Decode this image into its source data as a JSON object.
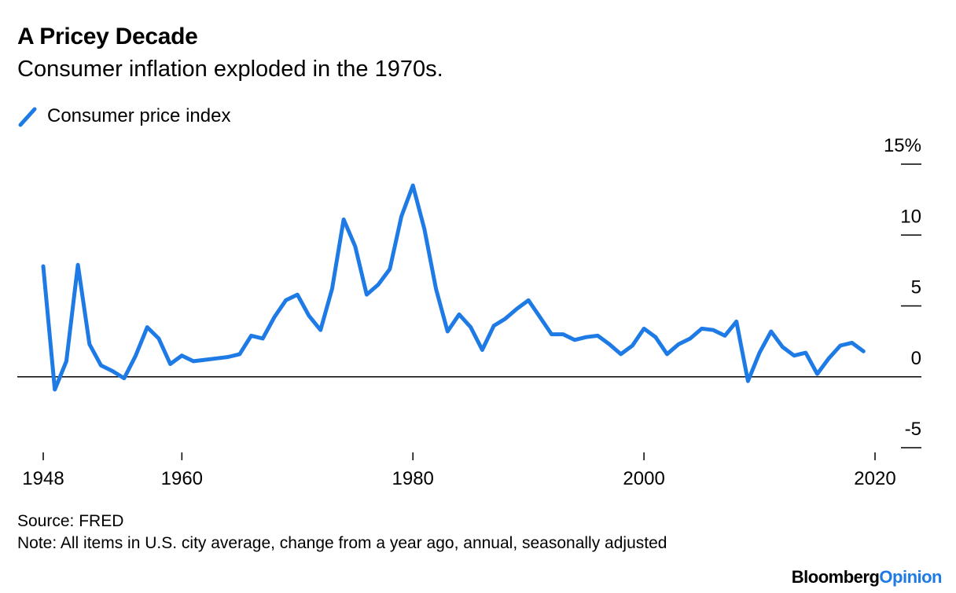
{
  "header": {
    "title": "A Pricey Decade",
    "subtitle": "Consumer inflation exploded in the 1970s."
  },
  "legend": {
    "label": "Consumer price index",
    "color": "#1e7ae4"
  },
  "footer": {
    "source": "Source: FRED",
    "note": "Note: All items in U.S. city average, change from a year ago, annual, seasonally adjusted",
    "brand_main": "Bloomberg",
    "brand_accent": "Opinion",
    "brand_accent_color": "#1e7ae4"
  },
  "chart_data": {
    "type": "line",
    "title": "A Pricey Decade",
    "subtitle": "Consumer inflation exploded in the 1970s.",
    "xlabel": "",
    "ylabel": "",
    "xlim": [
      1948,
      2020
    ],
    "ylim": [
      -5,
      15
    ],
    "x_ticks": [
      1948,
      1960,
      1980,
      2000,
      2020
    ],
    "y_ticks": [
      {
        "value": 15,
        "label": "15%"
      },
      {
        "value": 10,
        "label": "10"
      },
      {
        "value": 5,
        "label": "5"
      },
      {
        "value": 0,
        "label": "0"
      },
      {
        "value": -5,
        "label": "-5"
      }
    ],
    "y_axis_side": "right",
    "grid": false,
    "legend_position": "top-left",
    "series": [
      {
        "name": "Consumer price index",
        "color": "#1e7ae4",
        "x": [
          1948,
          1949,
          1950,
          1951,
          1952,
          1953,
          1954,
          1955,
          1956,
          1957,
          1958,
          1959,
          1960,
          1961,
          1962,
          1963,
          1964,
          1965,
          1966,
          1967,
          1968,
          1969,
          1970,
          1971,
          1972,
          1973,
          1974,
          1975,
          1976,
          1977,
          1978,
          1979,
          1980,
          1981,
          1982,
          1983,
          1984,
          1985,
          1986,
          1987,
          1988,
          1989,
          1990,
          1991,
          1992,
          1993,
          1994,
          1995,
          1996,
          1997,
          1998,
          1999,
          2000,
          2001,
          2002,
          2003,
          2004,
          2005,
          2006,
          2007,
          2008,
          2009,
          2010,
          2011,
          2012,
          2013,
          2014,
          2015,
          2016,
          2017,
          2018,
          2019
        ],
        "y": [
          7.8,
          -0.9,
          1.1,
          7.9,
          2.3,
          0.8,
          0.4,
          -0.1,
          1.5,
          3.5,
          2.7,
          0.9,
          1.5,
          1.1,
          1.2,
          1.3,
          1.4,
          1.6,
          2.9,
          2.7,
          4.2,
          5.4,
          5.8,
          4.3,
          3.3,
          6.2,
          11.1,
          9.2,
          5.8,
          6.5,
          7.6,
          11.3,
          13.5,
          10.4,
          6.2,
          3.2,
          4.4,
          3.5,
          1.9,
          3.6,
          4.1,
          4.8,
          5.4,
          4.2,
          3.0,
          3.0,
          2.6,
          2.8,
          2.9,
          2.3,
          1.6,
          2.2,
          3.4,
          2.8,
          1.6,
          2.3,
          2.7,
          3.4,
          3.3,
          2.9,
          3.9,
          -0.3,
          1.7,
          3.2,
          2.1,
          1.5,
          1.7,
          0.2,
          1.3,
          2.2,
          2.4,
          1.8
        ]
      }
    ]
  }
}
